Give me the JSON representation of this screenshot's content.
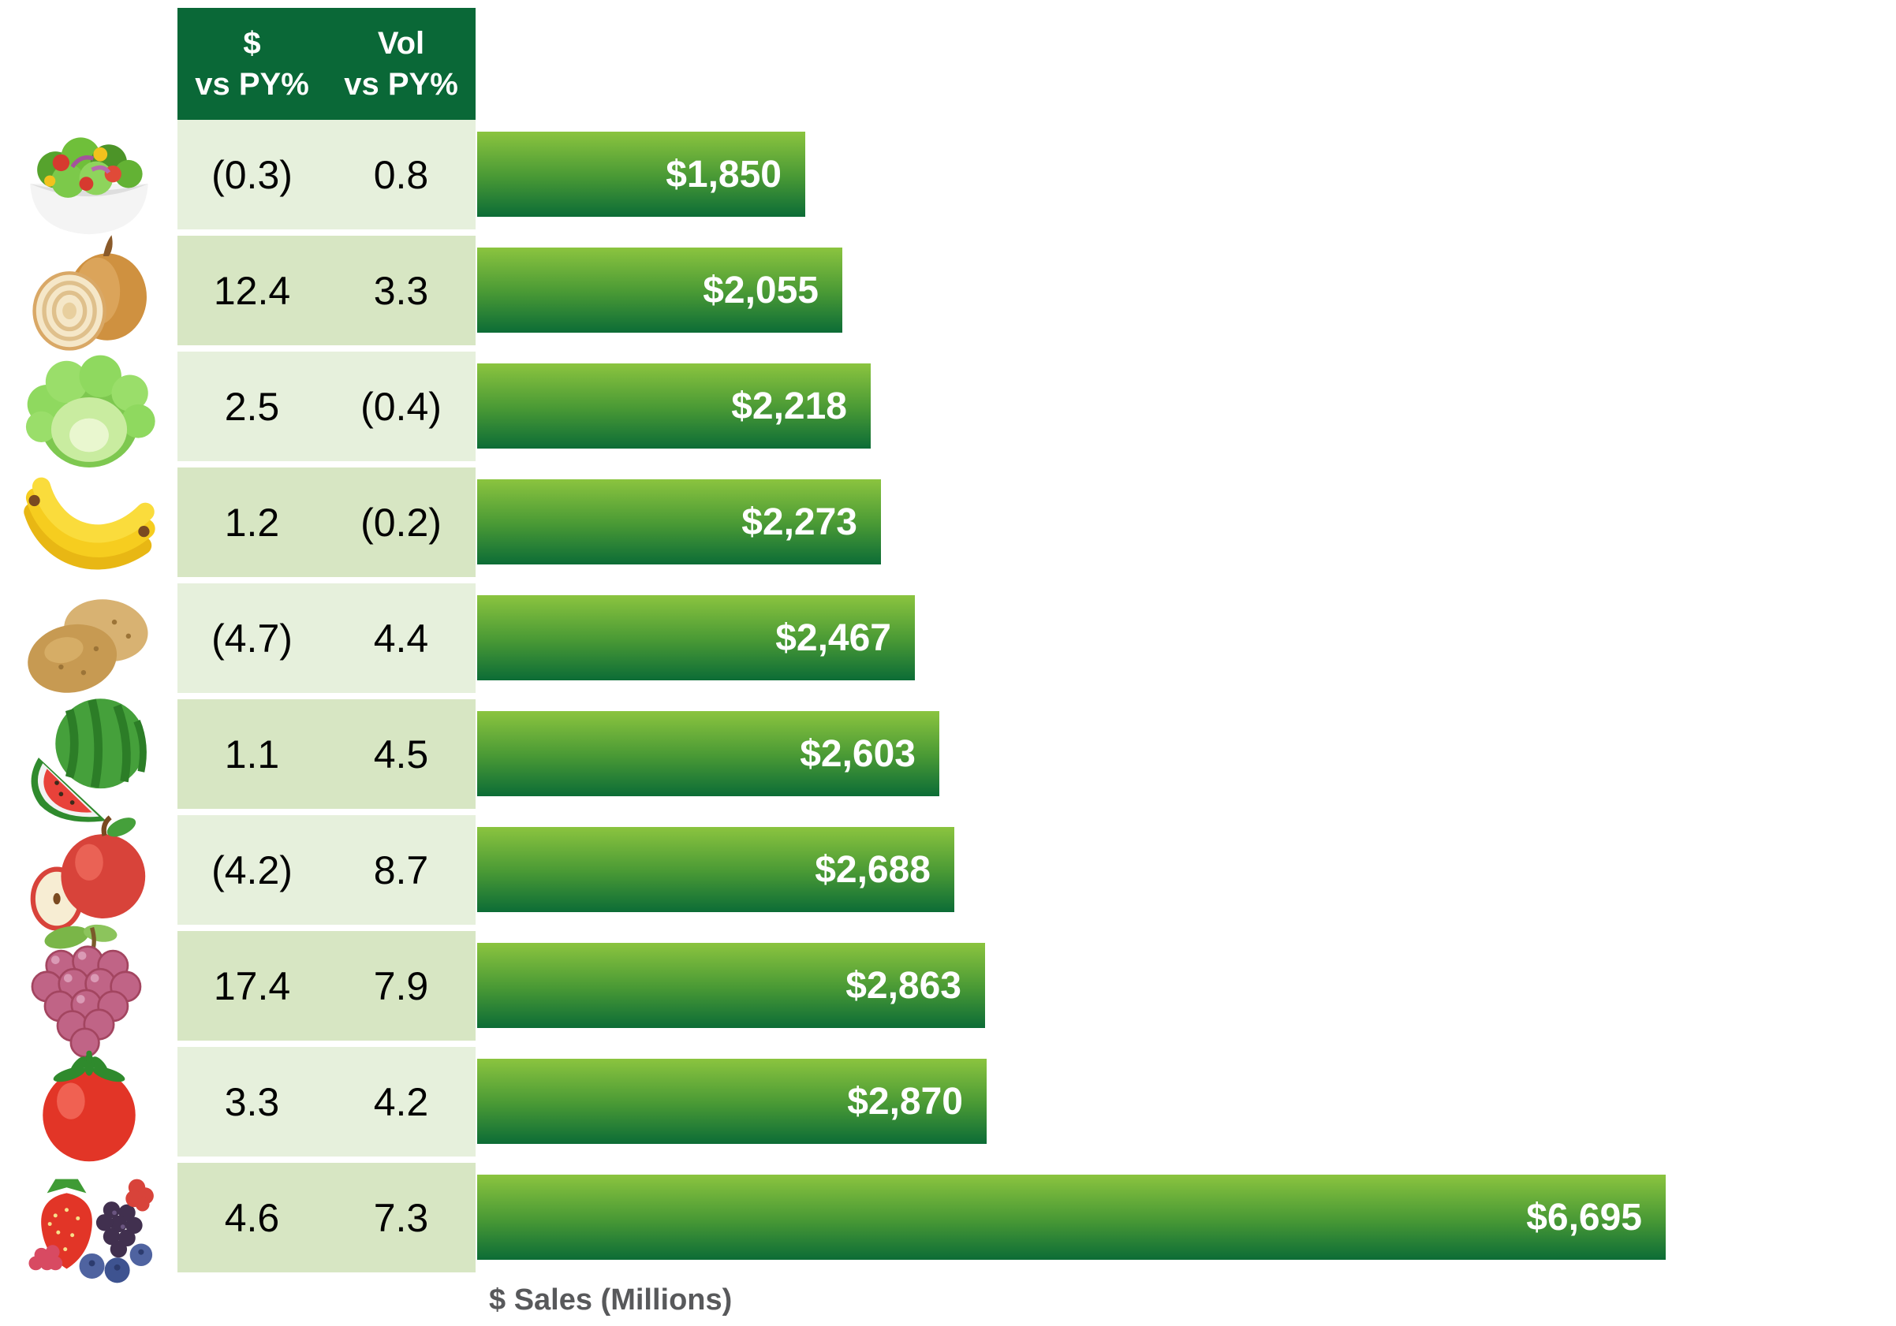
{
  "header": {
    "col1_line1": "$",
    "col1_line2": "vs PY%",
    "col2_line1": "Vol",
    "col2_line2": "vs PY%"
  },
  "colors": {
    "header_bg": "#0a6837",
    "header_text": "#ffffff",
    "row_light": "#e6f0dc",
    "row_dark": "#d7e6c3",
    "cell_text": "#000000",
    "bar_gradient_top": "#8bc43f",
    "bar_gradient_mid": "#4a9a35",
    "bar_gradient_bottom": "#0c6c36",
    "bar_label_text": "#ffffff",
    "axis_label_text": "#58595b"
  },
  "chart_data": {
    "type": "bar",
    "orientation": "horizontal",
    "title": "",
    "xlabel": "$ Sales (Millions)",
    "ylabel": "",
    "xlim": [
      0,
      6695
    ],
    "grid": false,
    "legend": false,
    "columns": [
      "$ vs PY%",
      "Vol vs PY%",
      "$ Sales (Millions)"
    ],
    "categories": [
      "salad",
      "onions",
      "lettuce",
      "bananas",
      "potatoes",
      "watermelon",
      "apples",
      "grapes",
      "tomatoes",
      "berries"
    ],
    "values": [
      1850,
      2055,
      2218,
      2273,
      2467,
      2603,
      2688,
      2863,
      2870,
      6695
    ],
    "rows": [
      {
        "item": "salad",
        "icon": "salad-icon",
        "dollar_vs_py": "(0.3)",
        "vol_vs_py": "0.8",
        "sales": 1850,
        "sales_label": "$1,850"
      },
      {
        "item": "onions",
        "icon": "onion-icon",
        "dollar_vs_py": "12.4",
        "vol_vs_py": "3.3",
        "sales": 2055,
        "sales_label": "$2,055"
      },
      {
        "item": "lettuce",
        "icon": "lettuce-icon",
        "dollar_vs_py": "2.5",
        "vol_vs_py": "(0.4)",
        "sales": 2218,
        "sales_label": "$2,218"
      },
      {
        "item": "bananas",
        "icon": "banana-icon",
        "dollar_vs_py": "1.2",
        "vol_vs_py": "(0.2)",
        "sales": 2273,
        "sales_label": "$2,273"
      },
      {
        "item": "potatoes",
        "icon": "potato-icon",
        "dollar_vs_py": "(4.7)",
        "vol_vs_py": "4.4",
        "sales": 2467,
        "sales_label": "$2,467"
      },
      {
        "item": "watermelon",
        "icon": "watermelon-icon",
        "dollar_vs_py": "1.1",
        "vol_vs_py": "4.5",
        "sales": 2603,
        "sales_label": "$2,603"
      },
      {
        "item": "apples",
        "icon": "apple-icon",
        "dollar_vs_py": "(4.2)",
        "vol_vs_py": "8.7",
        "sales": 2688,
        "sales_label": "$2,688"
      },
      {
        "item": "grapes",
        "icon": "grapes-icon",
        "dollar_vs_py": "17.4",
        "vol_vs_py": "7.9",
        "sales": 2863,
        "sales_label": "$2,863"
      },
      {
        "item": "tomatoes",
        "icon": "tomato-icon",
        "dollar_vs_py": "3.3",
        "vol_vs_py": "4.2",
        "sales": 2870,
        "sales_label": "$2,870"
      },
      {
        "item": "berries",
        "icon": "berries-icon",
        "dollar_vs_py": "4.6",
        "vol_vs_py": "7.3",
        "sales": 6695,
        "sales_label": "$6,695"
      }
    ]
  }
}
